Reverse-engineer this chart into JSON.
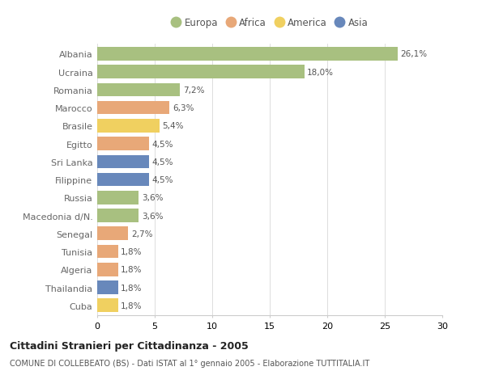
{
  "countries": [
    "Albania",
    "Ucraina",
    "Romania",
    "Marocco",
    "Brasile",
    "Egitto",
    "Sri Lanka",
    "Filippine",
    "Russia",
    "Macedonia d/N.",
    "Senegal",
    "Tunisia",
    "Algeria",
    "Thailandia",
    "Cuba"
  ],
  "values": [
    26.1,
    18.0,
    7.2,
    6.3,
    5.4,
    4.5,
    4.5,
    4.5,
    3.6,
    3.6,
    2.7,
    1.8,
    1.8,
    1.8,
    1.8
  ],
  "labels": [
    "26,1%",
    "18,0%",
    "7,2%",
    "6,3%",
    "5,4%",
    "4,5%",
    "4,5%",
    "4,5%",
    "3,6%",
    "3,6%",
    "2,7%",
    "1,8%",
    "1,8%",
    "1,8%",
    "1,8%"
  ],
  "continents": [
    "Europa",
    "Europa",
    "Europa",
    "Africa",
    "America",
    "Africa",
    "Asia",
    "Asia",
    "Europa",
    "Europa",
    "Africa",
    "Africa",
    "Africa",
    "Asia",
    "America"
  ],
  "colors": {
    "Europa": "#a8c080",
    "Africa": "#e8a878",
    "America": "#f0d060",
    "Asia": "#6888bb"
  },
  "xlim": [
    0,
    30
  ],
  "xticks": [
    0,
    5,
    10,
    15,
    20,
    25,
    30
  ],
  "title": "Cittadini Stranieri per Cittadinanza - 2005",
  "subtitle": "COMUNE DI COLLEBEATO (BS) - Dati ISTAT al 1° gennaio 2005 - Elaborazione TUTTITALIA.IT",
  "background_color": "#ffffff",
  "grid_color": "#d8d8d8",
  "label_color": "#666666",
  "value_label_color": "#555555",
  "bar_height": 0.75
}
